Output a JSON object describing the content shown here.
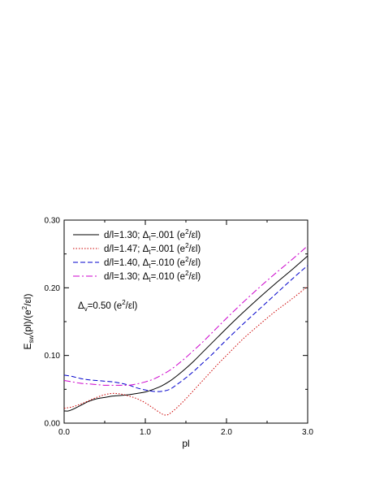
{
  "chart_data": {
    "type": "line",
    "xlabel": "pl",
    "ylabel": "E_sw(pl)/(e^2/εl)",
    "ylabel_parts": {
      "main": "E",
      "sub": "sw",
      "mid": "(pl)/(e",
      "sup": "2",
      "end": "/εl)"
    },
    "xlim": [
      0,
      3
    ],
    "ylim": [
      0,
      0.3
    ],
    "x_ticks": [
      0,
      1,
      2,
      3
    ],
    "x_tick_labels": [
      "0.0",
      "1.0",
      "2.0",
      "3.0"
    ],
    "y_ticks": [
      0,
      0.1,
      0.2,
      0.3
    ],
    "y_tick_labels": [
      "0.00",
      "0.10",
      "0.20",
      "0.30"
    ],
    "grid": false,
    "legend_position": "top-left",
    "series": [
      {
        "name": "d/l=1.30; Δ_t=.001 (e^2/εl)",
        "legend_parts": {
          "pre": "d/l=1.30; Δ",
          "sub": "t",
          "mid": "=.001 (e",
          "sup": "2",
          "end": "/εl)"
        },
        "color": "#000000",
        "dash": "solid",
        "x": [
          0,
          0.05,
          0.1,
          0.2,
          0.3,
          0.4,
          0.5,
          0.6,
          0.7,
          0.8,
          0.9,
          1.0,
          1.1,
          1.2,
          1.3,
          1.4,
          1.5,
          1.6,
          1.7,
          1.8,
          1.9,
          2.0,
          2.2,
          2.4,
          2.6,
          2.8,
          3.0
        ],
        "y": [
          0.018,
          0.018,
          0.02,
          0.026,
          0.032,
          0.036,
          0.038,
          0.04,
          0.041,
          0.042,
          0.044,
          0.046,
          0.05,
          0.055,
          0.062,
          0.071,
          0.081,
          0.092,
          0.104,
          0.116,
          0.128,
          0.14,
          0.163,
          0.185,
          0.206,
          0.226,
          0.247
        ]
      },
      {
        "name": "d/l=1.47; Δ_t=.001 (e^2/εl)",
        "legend_parts": {
          "pre": "d/l=1.47; Δ",
          "sub": "t",
          "mid": "=.001 (e",
          "sup": "2",
          "end": "/εl)"
        },
        "color": "#cc0000",
        "dash": "dotted",
        "x": [
          0,
          0.1,
          0.2,
          0.3,
          0.4,
          0.5,
          0.6,
          0.7,
          0.8,
          0.9,
          1.0,
          1.1,
          1.2,
          1.25,
          1.3,
          1.4,
          1.5,
          1.6,
          1.7,
          1.8,
          1.9,
          2.0,
          2.2,
          2.4,
          2.6,
          2.8,
          3.0
        ],
        "y": [
          0.022,
          0.024,
          0.028,
          0.033,
          0.038,
          0.042,
          0.044,
          0.043,
          0.04,
          0.036,
          0.03,
          0.022,
          0.014,
          0.012,
          0.014,
          0.024,
          0.036,
          0.049,
          0.062,
          0.075,
          0.088,
          0.1,
          0.124,
          0.145,
          0.165,
          0.183,
          0.202
        ]
      },
      {
        "name": "d/l=1.40, Δ_t=.010 (e^2/εl)",
        "legend_parts": {
          "pre": "d/l=1.40, Δ",
          "sub": "t",
          "mid": "=.010 (e",
          "sup": "2",
          "end": "/εl)"
        },
        "color": "#0000cc",
        "dash": "dashed",
        "x": [
          0,
          0.1,
          0.2,
          0.3,
          0.4,
          0.5,
          0.6,
          0.7,
          0.8,
          0.9,
          1.0,
          1.1,
          1.2,
          1.3,
          1.4,
          1.5,
          1.6,
          1.7,
          1.8,
          1.9,
          2.0,
          2.2,
          2.4,
          2.6,
          2.8,
          3.0
        ],
        "y": [
          0.071,
          0.069,
          0.066,
          0.064,
          0.063,
          0.062,
          0.061,
          0.059,
          0.056,
          0.052,
          0.049,
          0.047,
          0.047,
          0.05,
          0.058,
          0.067,
          0.077,
          0.088,
          0.099,
          0.111,
          0.123,
          0.146,
          0.168,
          0.19,
          0.212,
          0.233
        ]
      },
      {
        "name": "d/l=1.30; Δ_t=.010 (e^2/εl)",
        "legend_parts": {
          "pre": "d/l=1.30; Δ",
          "sub": "t",
          "mid": "=.010 (e",
          "sup": "2",
          "end": "/εl)"
        },
        "color": "#cc00cc",
        "dash": "dashdot",
        "x": [
          0,
          0.1,
          0.2,
          0.3,
          0.4,
          0.5,
          0.6,
          0.7,
          0.8,
          0.9,
          1.0,
          1.1,
          1.2,
          1.3,
          1.4,
          1.5,
          1.6,
          1.7,
          1.8,
          1.9,
          2.0,
          2.2,
          2.4,
          2.6,
          2.8,
          3.0
        ],
        "y": [
          0.063,
          0.061,
          0.059,
          0.058,
          0.057,
          0.056,
          0.056,
          0.056,
          0.056,
          0.058,
          0.061,
          0.065,
          0.071,
          0.078,
          0.087,
          0.097,
          0.108,
          0.119,
          0.131,
          0.143,
          0.155,
          0.178,
          0.2,
          0.221,
          0.241,
          0.262
        ]
      }
    ],
    "annotation": {
      "text": "Δ_v=0.50 (e^2/εl)",
      "parts": {
        "pre": "Δ",
        "sub": "v",
        "mid": "=0.50 (e",
        "sup": "2",
        "end": "/εl)"
      }
    }
  }
}
